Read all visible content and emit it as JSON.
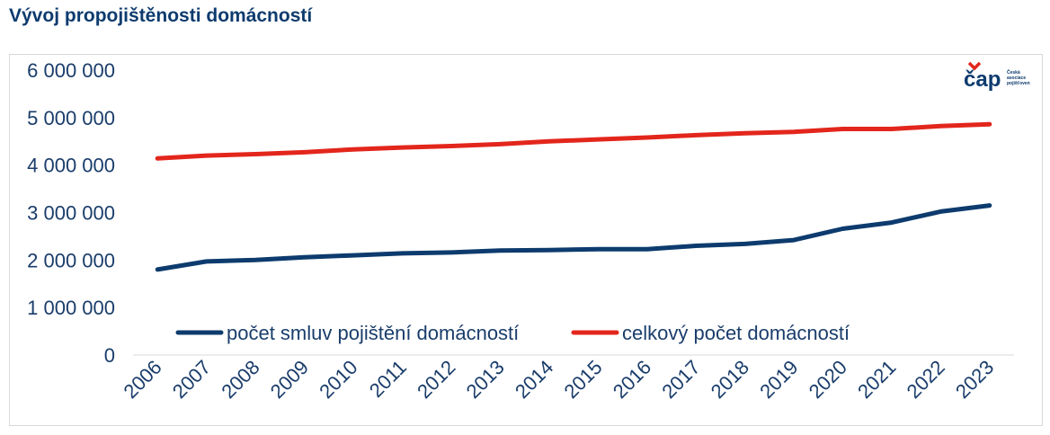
{
  "title": "Vývoj propojištěnosti domácností",
  "logo": {
    "text": "čap",
    "line1": "Česká",
    "line2": "asociace",
    "line3": "pojišťoven",
    "accent_color": "#e3261c"
  },
  "chart_data": {
    "type": "line",
    "title": "",
    "xlabel": "",
    "ylabel": "",
    "x": [
      "2006",
      "2007",
      "2008",
      "2009",
      "2010",
      "2011",
      "2012",
      "2013",
      "2014",
      "2015",
      "2016",
      "2017",
      "2018",
      "2019",
      "2020",
      "2021",
      "2022",
      "2023"
    ],
    "ylim": [
      0,
      6000000
    ],
    "yticks": [
      0,
      1000000,
      2000000,
      3000000,
      4000000,
      5000000,
      6000000
    ],
    "ytick_labels": [
      "0",
      "1 000 000",
      "2 000 000",
      "3 000 000",
      "4 000 000",
      "5 000 000",
      "6 000 000"
    ],
    "grid": false,
    "legend_position": "bottom-inside",
    "series": [
      {
        "name": "počet smluv pojištění domácností",
        "color": "#0d3b6e",
        "values": [
          1800000,
          1970000,
          2000000,
          2060000,
          2100000,
          2140000,
          2160000,
          2200000,
          2210000,
          2230000,
          2230000,
          2300000,
          2340000,
          2420000,
          2660000,
          2790000,
          3020000,
          3150000
        ]
      },
      {
        "name": "celkový počet domácností",
        "color": "#e3261c",
        "values": [
          4140000,
          4200000,
          4230000,
          4270000,
          4330000,
          4370000,
          4400000,
          4440000,
          4500000,
          4540000,
          4580000,
          4630000,
          4670000,
          4700000,
          4760000,
          4760000,
          4820000,
          4860000
        ]
      }
    ]
  }
}
